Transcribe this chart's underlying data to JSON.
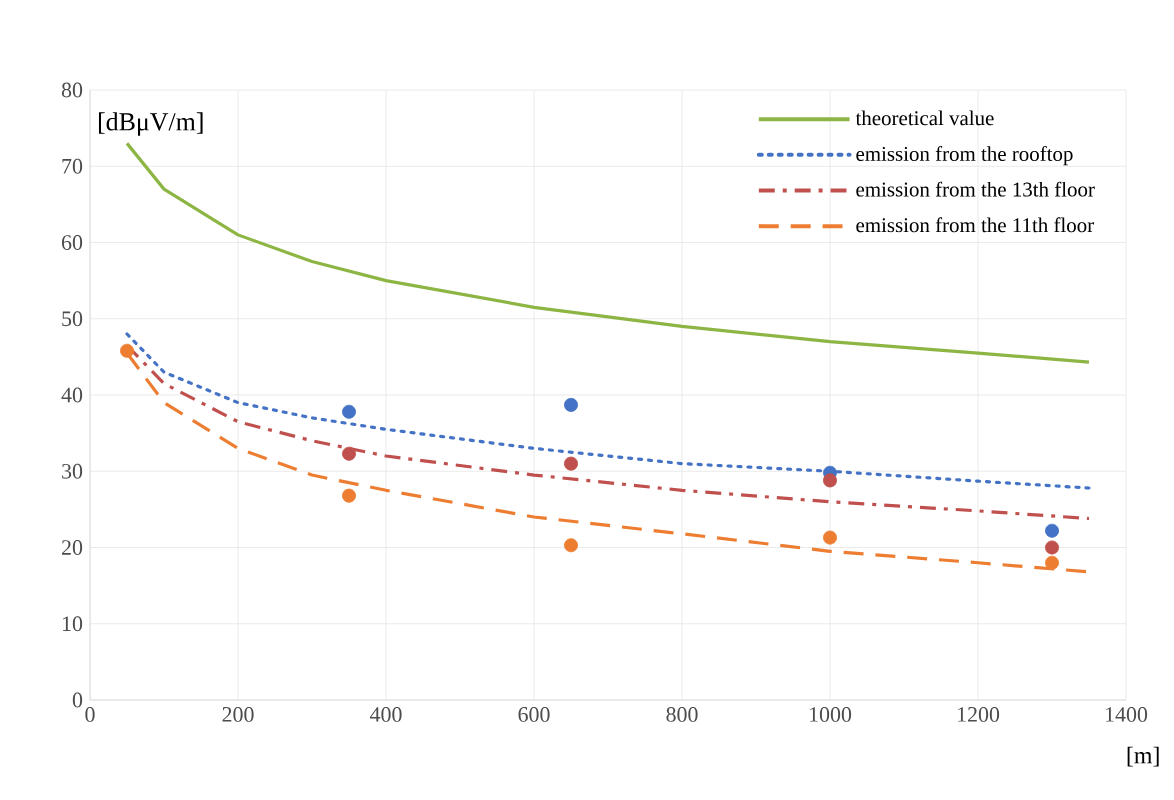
{
  "chart_data": {
    "type": "line",
    "xlabel": "[m]",
    "ylabel": "[dBμV/m]",
    "xlim": [
      0,
      1400
    ],
    "xticks": [
      0,
      200,
      400,
      600,
      800,
      1000,
      1200,
      1400
    ],
    "ylim": [
      0,
      80
    ],
    "yticks": [
      0,
      10,
      20,
      30,
      40,
      50,
      60,
      70,
      80
    ],
    "grid": true,
    "legend": "top right",
    "series": [
      {
        "name": "theoretical value",
        "color": "#8db543",
        "line_style": "solid",
        "marker": "none",
        "x": [
          50,
          100,
          200,
          300,
          400,
          600,
          800,
          1000,
          1200,
          1350
        ],
        "values": [
          73,
          67,
          61,
          57.5,
          55,
          51.5,
          49,
          47,
          45.5,
          44.3
        ]
      },
      {
        "name": "emission from the rooftop",
        "color": "#4472c4",
        "line_style": "dotted",
        "marker": "none",
        "x": [
          50,
          100,
          200,
          300,
          400,
          600,
          800,
          1000,
          1200,
          1350
        ],
        "values": [
          48,
          43,
          39,
          37,
          35.5,
          33,
          31,
          30,
          28.7,
          27.8
        ]
      },
      {
        "name": "emission from the 13th floor",
        "color": "#c0504d",
        "line_style": "dashdotted",
        "marker": "none",
        "x": [
          50,
          100,
          200,
          300,
          400,
          600,
          800,
          1000,
          1200,
          1350
        ],
        "values": [
          46.5,
          41.5,
          36.5,
          34,
          32,
          29.5,
          27.5,
          26,
          24.8,
          23.8
        ]
      },
      {
        "name": "emission from the 11th floor",
        "color": "#ed7d31",
        "line_style": "dashed",
        "marker": "none",
        "x": [
          50,
          100,
          200,
          300,
          400,
          600,
          800,
          1000,
          1200,
          1350
        ],
        "values": [
          45.5,
          39,
          33,
          29.5,
          27.5,
          24,
          21.8,
          19.5,
          18,
          16.8
        ]
      },
      {
        "type": "scatter",
        "color": "#4472c4",
        "marker": "circle",
        "x": [
          350,
          650,
          1000,
          1300
        ],
        "values": [
          37.8,
          38.7,
          29.8,
          22.2
        ]
      },
      {
        "type": "scatter",
        "color": "#c0504d",
        "marker": "circle",
        "x": [
          350,
          650,
          1000,
          1300
        ],
        "values": [
          32.3,
          31,
          28.8,
          20
        ]
      },
      {
        "type": "scatter",
        "color": "#ed7d31",
        "marker": "circle",
        "x": [
          50,
          350,
          650,
          1000,
          1300
        ],
        "values": [
          45.8,
          26.8,
          20.3,
          21.3,
          18
        ]
      }
    ]
  }
}
